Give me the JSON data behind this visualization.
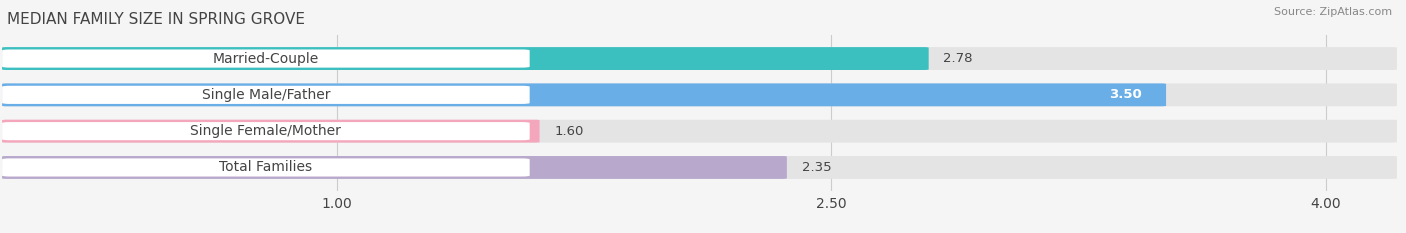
{
  "title": "MEDIAN FAMILY SIZE IN SPRING GROVE",
  "source": "Source: ZipAtlas.com",
  "categories": [
    "Married-Couple",
    "Single Male/Father",
    "Single Female/Mother",
    "Total Families"
  ],
  "values": [
    2.78,
    3.5,
    1.6,
    2.35
  ],
  "bar_colors": [
    "#3bbfbf",
    "#6aaee8",
    "#f4a7bc",
    "#b8a8cc"
  ],
  "value_inside": [
    false,
    true,
    false,
    false
  ],
  "xmin": 0.0,
  "xmax": 4.2,
  "xticks": [
    1.0,
    2.5,
    4.0
  ],
  "bar_height": 0.6,
  "label_fontsize": 10,
  "title_fontsize": 11,
  "value_fontsize": 9.5,
  "bg_color": "#f5f5f5",
  "bar_bg_color": "#e4e4e4",
  "label_bg_color": "#ffffff",
  "text_color": "#444444",
  "grid_color": "#cccccc"
}
